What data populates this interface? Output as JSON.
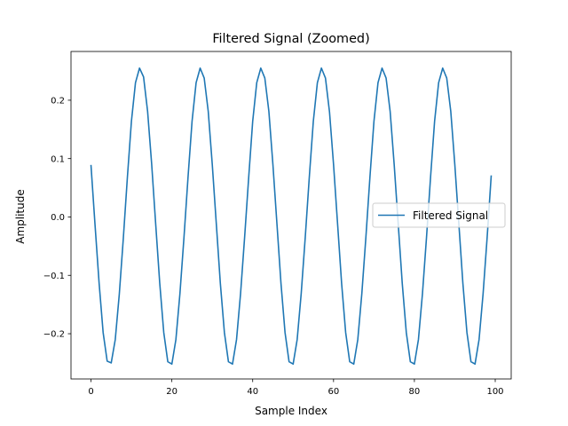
{
  "chart_data": {
    "type": "line",
    "title": "Filtered Signal (Zoomed)",
    "xlabel": "Sample Index",
    "ylabel": "Amplitude",
    "xlim": [
      -4.95,
      103.95
    ],
    "ylim": [
      -0.2775,
      0.2835
    ],
    "xticks": [
      0,
      20,
      40,
      60,
      80,
      100
    ],
    "xtick_labels": [
      "0",
      "20",
      "40",
      "60",
      "80",
      "100"
    ],
    "yticks": [
      -0.2,
      -0.1,
      0.0,
      0.1,
      0.2
    ],
    "ytick_labels": [
      "−0.2",
      "−0.1",
      "0.0",
      "0.1",
      "0.2"
    ],
    "grid": false,
    "legend": {
      "position": "center-right",
      "entries": [
        "Filtered Signal"
      ]
    },
    "series": [
      {
        "name": "Filtered Signal",
        "color": "#1f77b4",
        "x": [
          0,
          1,
          2,
          3,
          4,
          5,
          6,
          7,
          8,
          9,
          10,
          11,
          12,
          13,
          14,
          15,
          16,
          17,
          18,
          19,
          20,
          21,
          22,
          23,
          24,
          25,
          26,
          27,
          28,
          29,
          30,
          31,
          32,
          33,
          34,
          35,
          36,
          37,
          38,
          39,
          40,
          41,
          42,
          43,
          44,
          45,
          46,
          47,
          48,
          49,
          50,
          51,
          52,
          53,
          54,
          55,
          56,
          57,
          58,
          59,
          60,
          61,
          62,
          63,
          64,
          65,
          66,
          67,
          68,
          69,
          70,
          71,
          72,
          73,
          74,
          75,
          76,
          77,
          78,
          79,
          80,
          81,
          82,
          83,
          84,
          85,
          86,
          87,
          88,
          89,
          90,
          91,
          92,
          93,
          94,
          95,
          96,
          97,
          98,
          99
        ],
        "values": [
          0.088,
          -0.014,
          -0.113,
          -0.198,
          -0.247,
          -0.25,
          -0.21,
          -0.132,
          -0.036,
          0.068,
          0.164,
          0.23,
          0.255,
          0.24,
          0.181,
          0.091,
          -0.012,
          -0.113,
          -0.198,
          -0.248,
          -0.252,
          -0.21,
          -0.131,
          -0.035,
          0.068,
          0.164,
          0.23,
          0.255,
          0.238,
          0.181,
          0.09,
          -0.012,
          -0.114,
          -0.198,
          -0.248,
          -0.252,
          -0.21,
          -0.131,
          -0.035,
          0.067,
          0.164,
          0.23,
          0.255,
          0.238,
          0.181,
          0.09,
          -0.012,
          -0.114,
          -0.198,
          -0.248,
          -0.252,
          -0.21,
          -0.131,
          -0.035,
          0.068,
          0.164,
          0.23,
          0.255,
          0.238,
          0.18,
          0.09,
          -0.012,
          -0.114,
          -0.198,
          -0.248,
          -0.252,
          -0.21,
          -0.131,
          -0.035,
          0.068,
          0.164,
          0.23,
          0.255,
          0.238,
          0.181,
          0.09,
          -0.012,
          -0.114,
          -0.198,
          -0.248,
          -0.252,
          -0.21,
          -0.131,
          -0.035,
          0.068,
          0.164,
          0.23,
          0.255,
          0.238,
          0.181,
          0.09,
          -0.012,
          -0.114,
          -0.198,
          -0.248,
          -0.252,
          -0.21,
          -0.131,
          -0.035,
          0.07
        ]
      }
    ]
  }
}
